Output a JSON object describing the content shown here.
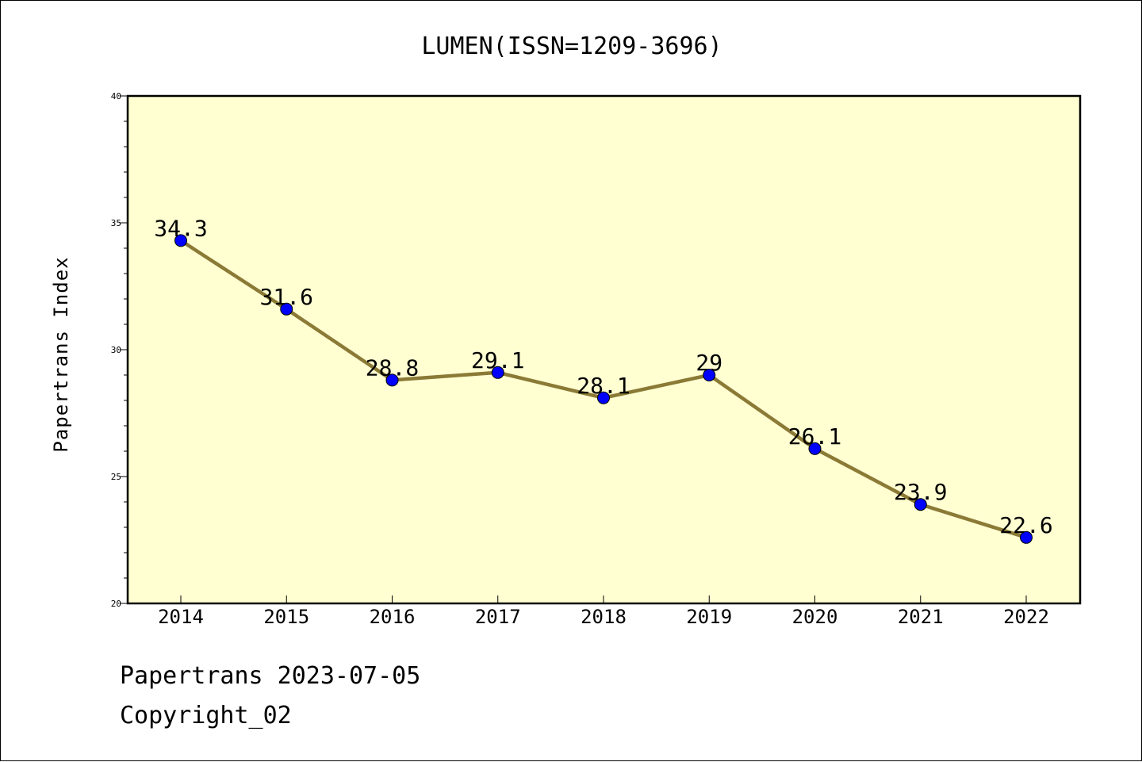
{
  "chart_data": {
    "type": "line",
    "title": "LUMEN(ISSN=1209-3696)",
    "xlabel": "",
    "ylabel": "Papertrans Index",
    "categories": [
      "2014",
      "2015",
      "2016",
      "2017",
      "2018",
      "2019",
      "2020",
      "2021",
      "2022"
    ],
    "values": [
      34.3,
      31.6,
      28.8,
      29.1,
      28.1,
      29.0,
      26.1,
      23.9,
      22.6
    ],
    "value_labels": [
      "34.3",
      "31.6",
      "28.8",
      "29.1",
      "28.1",
      "29",
      "26.1",
      "23.9",
      "22.6"
    ],
    "ylim": [
      20,
      40
    ],
    "yticks": [
      "20",
      "25",
      "30",
      "35",
      "40"
    ],
    "grid": false,
    "legend": "none",
    "colors": {
      "line": "#8B7A36",
      "marker": "#0000FF",
      "plot_background": "#FFFFD2"
    }
  },
  "footer": {
    "line1": "Papertrans 2023-07-05",
    "line2": "Copyright_02"
  }
}
